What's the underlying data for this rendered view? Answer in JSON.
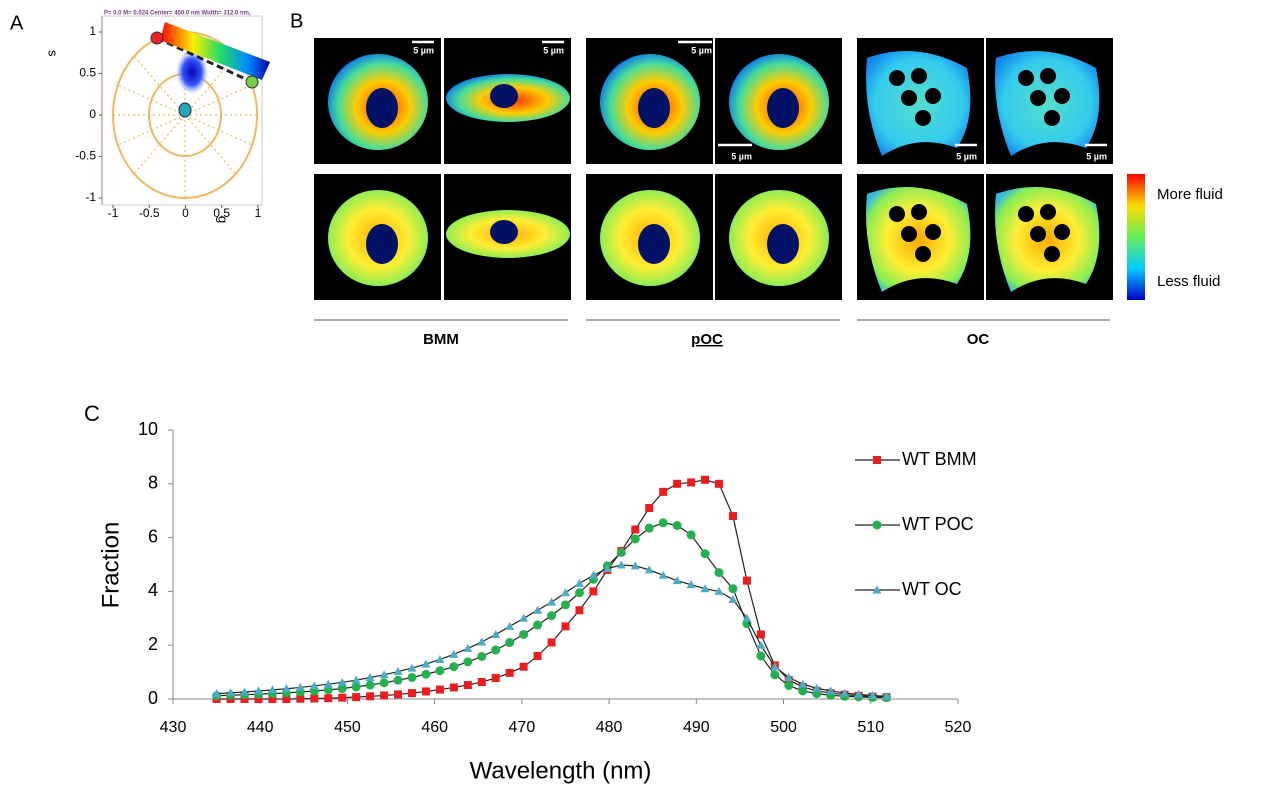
{
  "panel_labels": [
    "A",
    "B",
    "C"
  ],
  "microscopy": {
    "scale_bar_labels": [
      "5 µm",
      "5 µm",
      "5 µm",
      "5 µm",
      "5 µm",
      "5 µm"
    ],
    "groups": [
      "BMM",
      "pOC",
      "OC"
    ],
    "colorbar_labels": [
      "More fluid",
      "Less fluid"
    ]
  },
  "chart_data": [
    {
      "type": "phasor",
      "header": "P= 0.0 M= 0.024 Center= 450.0 nm Width= 312.0 nm,",
      "xlabel": "g",
      "ylabel": "s",
      "xlim": [
        -1,
        1
      ],
      "ylim": [
        -1,
        1
      ],
      "xticks": [
        -1,
        -0.5,
        0,
        0.5,
        1
      ],
      "yticks": [
        -1,
        -0.5,
        0,
        0.5,
        1
      ]
    },
    {
      "type": "line",
      "xlabel": "Wavelength (nm)",
      "ylabel": "Fraction",
      "xlim": [
        430,
        520
      ],
      "ylim": [
        0,
        10
      ],
      "xticks": [
        430,
        440,
        450,
        460,
        470,
        480,
        490,
        500,
        510,
        520
      ],
      "yticks": [
        0,
        2,
        4,
        6,
        8,
        10
      ],
      "x": [
        435,
        436.6,
        438.2,
        439.8,
        441.4,
        443,
        444.6,
        446.2,
        447.8,
        449.4,
        451,
        452.6,
        454.2,
        455.8,
        457.4,
        459,
        460.6,
        462.2,
        463.8,
        465.4,
        467,
        468.6,
        470.2,
        471.8,
        473.4,
        475,
        476.6,
        478.2,
        479.8,
        481.4,
        483,
        484.6,
        486.2,
        487.8,
        489.4,
        491,
        492.6,
        494.2,
        495.8,
        497.4,
        499,
        500.6,
        502.2,
        503.8,
        505.4,
        507,
        508.6,
        510.2,
        511.8
      ],
      "series": [
        {
          "name": "WT BMM",
          "color": "#ee1c1c",
          "marker": "square",
          "values": [
            0,
            0,
            0,
            0,
            0,
            0,
            0.01,
            0.02,
            0.03,
            0.05,
            0.07,
            0.1,
            0.13,
            0.17,
            0.22,
            0.28,
            0.35,
            0.43,
            0.52,
            0.63,
            0.78,
            0.97,
            1.2,
            1.6,
            2.1,
            2.7,
            3.3,
            4.0,
            4.8,
            5.5,
            6.3,
            7.1,
            7.7,
            8.0,
            8.05,
            8.15,
            8.0,
            6.8,
            4.4,
            2.4,
            1.25,
            0.7,
            0.45,
            0.3,
            0.22,
            0.16,
            0.12,
            0.09,
            0.07
          ]
        },
        {
          "name": "WT POC",
          "color": "#22b14c",
          "marker": "circle",
          "values": [
            0.12,
            0.14,
            0.16,
            0.18,
            0.2,
            0.23,
            0.26,
            0.3,
            0.34,
            0.39,
            0.45,
            0.52,
            0.6,
            0.7,
            0.8,
            0.92,
            1.05,
            1.2,
            1.38,
            1.58,
            1.82,
            2.1,
            2.4,
            2.75,
            3.1,
            3.5,
            3.95,
            4.45,
            4.95,
            5.45,
            5.95,
            6.35,
            6.55,
            6.45,
            6.1,
            5.4,
            4.7,
            4.1,
            2.8,
            1.6,
            0.9,
            0.5,
            0.3,
            0.2,
            0.14,
            0.1,
            0.08,
            0.06,
            0.05
          ]
        },
        {
          "name": "WT OC",
          "color": "#4bacc6",
          "marker": "triangle",
          "values": [
            0.2,
            0.23,
            0.26,
            0.3,
            0.34,
            0.38,
            0.43,
            0.49,
            0.55,
            0.62,
            0.7,
            0.8,
            0.9,
            1.02,
            1.15,
            1.3,
            1.47,
            1.66,
            1.88,
            2.12,
            2.4,
            2.7,
            3.0,
            3.3,
            3.6,
            3.95,
            4.3,
            4.6,
            4.85,
            4.98,
            4.95,
            4.8,
            4.6,
            4.4,
            4.25,
            4.1,
            4.0,
            3.7,
            3.0,
            2.0,
            1.2,
            0.8,
            0.55,
            0.4,
            0.3,
            0.22,
            0.17,
            0.13,
            0.1
          ]
        }
      ]
    }
  ]
}
